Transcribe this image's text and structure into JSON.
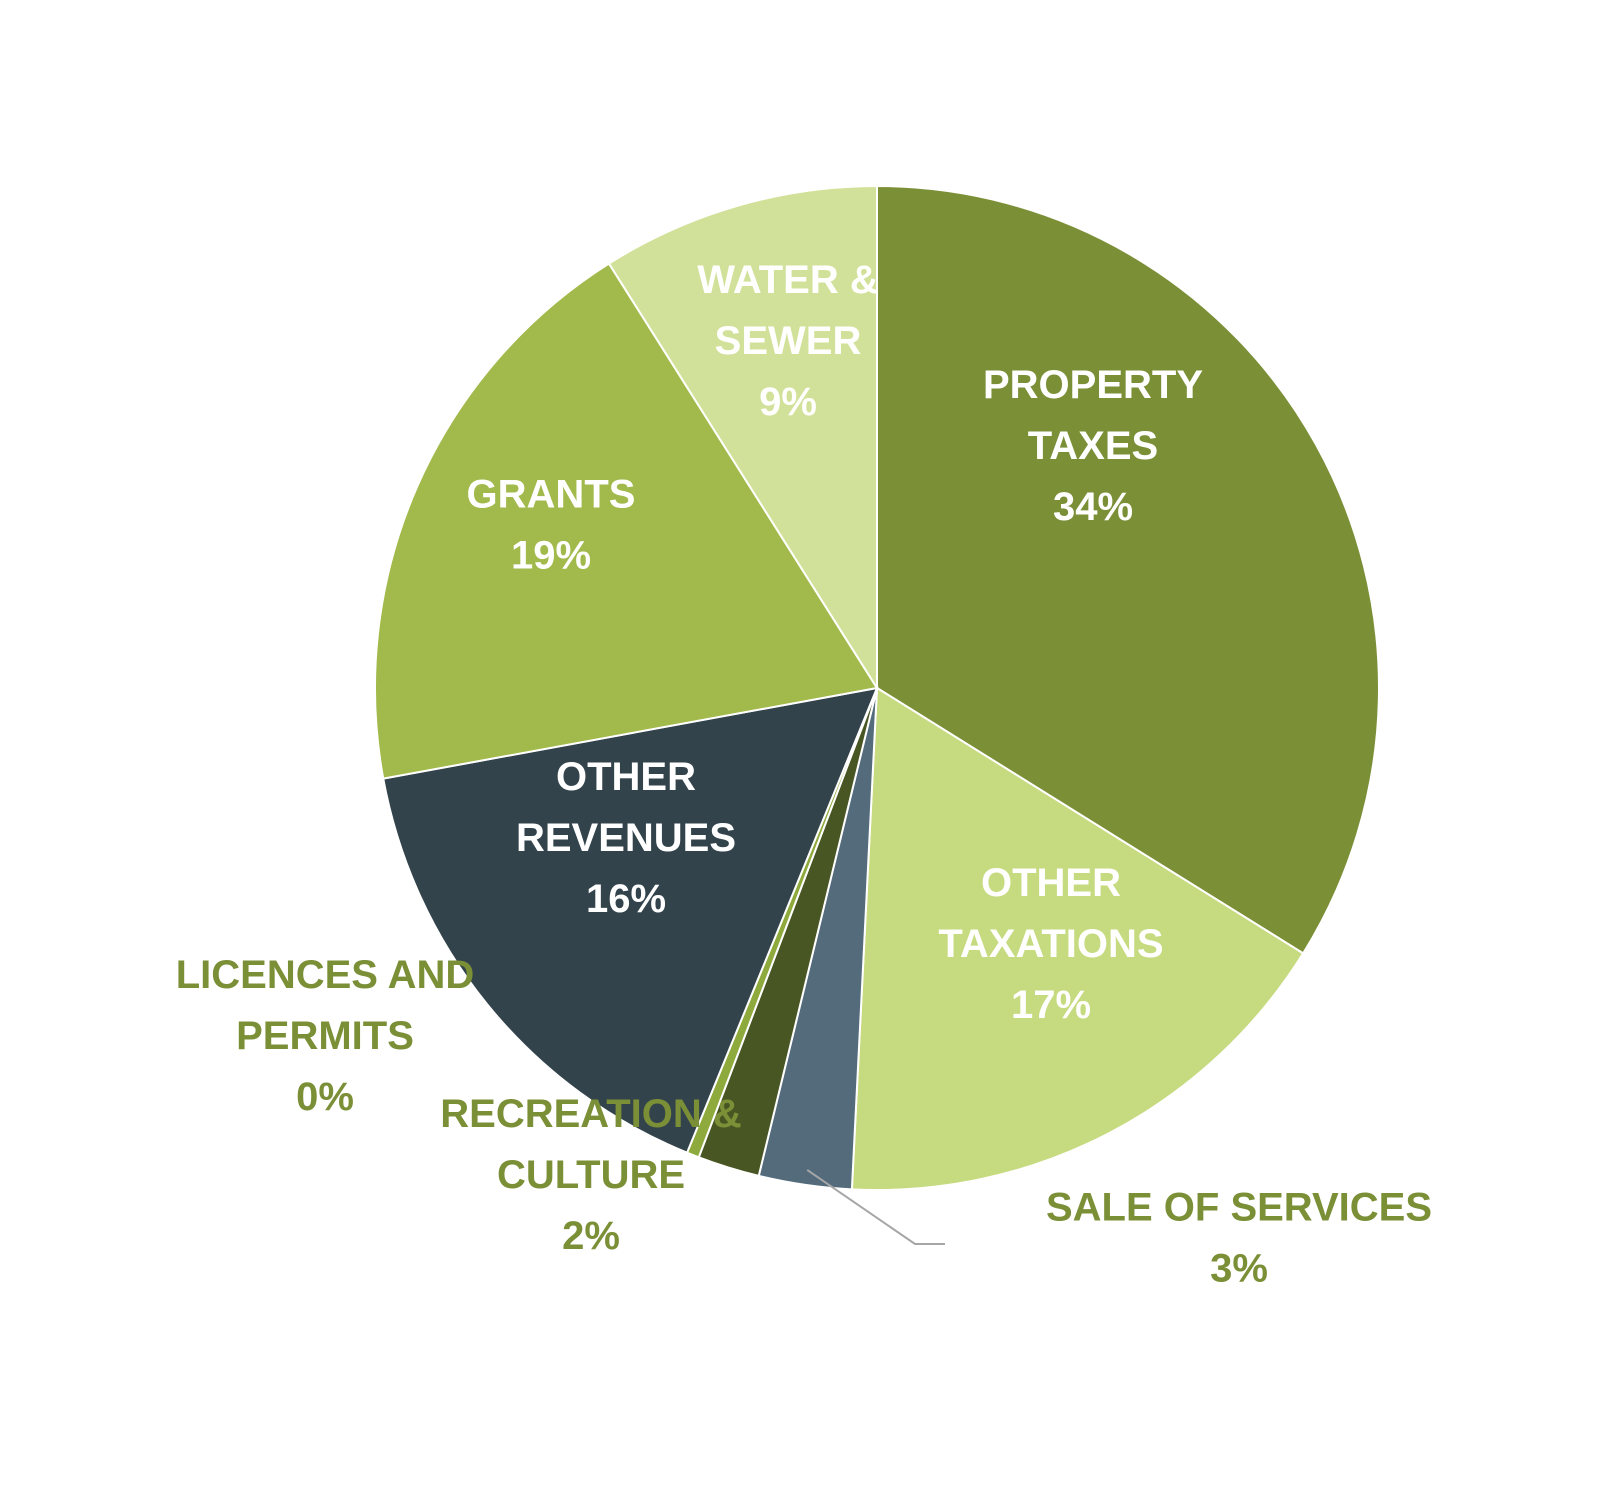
{
  "chart_data": {
    "type": "pie",
    "title": "",
    "start_angle_deg": 0,
    "direction": "clockwise",
    "slices": [
      {
        "label": [
          "PROPERTY",
          "TAXES"
        ],
        "value": 34,
        "value_label": "34%",
        "color": "#7b8f37",
        "label_color": "#ffffff",
        "label_position": "inside"
      },
      {
        "label": [
          "OTHER",
          "TAXATIONS"
        ],
        "value": 17,
        "value_label": "17%",
        "color": "#c6da7f",
        "label_color": "#ffffff",
        "label_position": "inside"
      },
      {
        "label": [
          "SALE OF SERVICES"
        ],
        "value": 3,
        "value_label": "3%",
        "color": "#546b7c",
        "label_color": "#7b8f37",
        "label_position": "outside",
        "leader_line": true
      },
      {
        "label": [
          "RECREATION &",
          "CULTURE"
        ],
        "value": 2,
        "value_label": "2%",
        "color": "#485623",
        "label_color": "#7b8f37",
        "label_position": "outside"
      },
      {
        "label": [
          "LICENCES AND",
          "PERMITS"
        ],
        "value": 0.4,
        "value_label": "0%",
        "color": "#8faa3c",
        "label_color": "#7b8f37",
        "label_position": "outside"
      },
      {
        "label": [
          "OTHER",
          "REVENUES"
        ],
        "value": 16,
        "value_label": "16%",
        "color": "#33434b",
        "label_color": "#ffffff",
        "label_position": "inside"
      },
      {
        "label": [
          "GRANTS"
        ],
        "value": 19,
        "value_label": "19%",
        "color": "#a2b94b",
        "label_color": "#ffffff",
        "label_position": "inside"
      },
      {
        "label": [
          "WATER &",
          "SEWER"
        ],
        "value": 9,
        "value_label": "9%",
        "color": "#d2e19a",
        "label_color": "#ffffff",
        "label_position": "inside"
      }
    ]
  }
}
